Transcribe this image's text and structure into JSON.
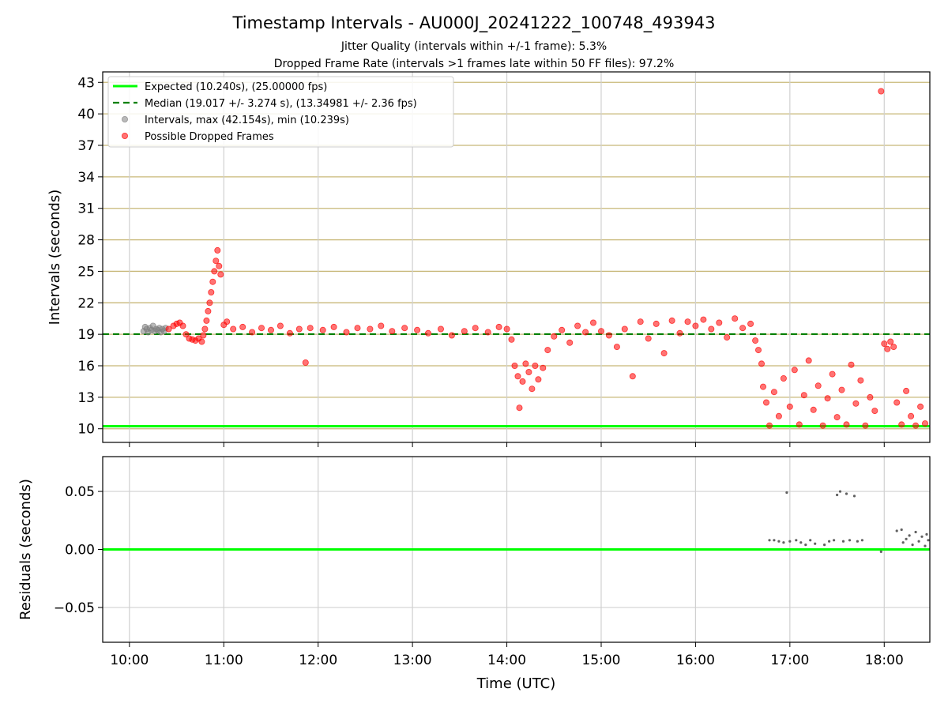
{
  "chart_data": [
    {
      "type": "scatter",
      "title": "Timestamp Intervals - AU000J_20241222_100748_493943",
      "subtitle_lines": [
        "Jitter Quality (intervals within +/-1 frame): 5.3%",
        "Dropped Frame Rate (intervals >1 frames late within 50 FF files): 97.2%"
      ],
      "xlabel": "",
      "ylabel": "Intervals (seconds)",
      "xlim": [
        "09:43",
        "18:29"
      ],
      "ylim": [
        8.7,
        44.0
      ],
      "x_ticks": [
        "10:00",
        "11:00",
        "12:00",
        "13:00",
        "14:00",
        "15:00",
        "16:00",
        "17:00",
        "18:00"
      ],
      "y_ticks": [
        10,
        13,
        16,
        19,
        22,
        25,
        28,
        31,
        34,
        37,
        40,
        43
      ],
      "grid": "on",
      "legend_position": "top-left",
      "legend": [
        {
          "label": "Expected (10.240s), (25.00000 fps)",
          "kind": "line",
          "color": "#00ff00",
          "style": "solid"
        },
        {
          "label": "Median (19.017 +/- 3.274 s), (13.34981 +/- 2.36 fps)",
          "kind": "line",
          "color": "#008000",
          "style": "dashed"
        },
        {
          "label": "Intervals, max (42.154s), min (10.239s)",
          "kind": "marker",
          "color": "#808080"
        },
        {
          "label": "Possible Dropped Frames",
          "kind": "marker",
          "color": "#ff0000"
        }
      ],
      "reference_lines": {
        "expected": 10.24,
        "median": 19.017
      },
      "series": [
        {
          "name": "Intervals, max (42.154s), min (10.239s)",
          "color": "#808080",
          "points": [
            [
              "10:09",
              19.3
            ],
            [
              "10:10",
              19.7
            ],
            [
              "10:11",
              19.5
            ],
            [
              "10:12",
              19.2
            ],
            [
              "10:13",
              19.6
            ],
            [
              "10:14",
              19.4
            ],
            [
              "10:15",
              19.8
            ],
            [
              "10:16",
              19.3
            ],
            [
              "10:17",
              19.5
            ],
            [
              "10:18",
              19.4
            ],
            [
              "10:19",
              19.6
            ],
            [
              "10:20",
              19.2
            ],
            [
              "10:21",
              19.5
            ],
            [
              "10:22",
              19.3
            ],
            [
              "10:23",
              19.6
            ]
          ]
        },
        {
          "name": "Possible Dropped Frames",
          "color": "#ff0000",
          "points": [
            [
              "10:25",
              19.5
            ],
            [
              "10:28",
              19.8
            ],
            [
              "10:30",
              20.0
            ],
            [
              "10:32",
              20.1
            ],
            [
              "10:34",
              19.8
            ],
            [
              "10:36",
              19.0
            ],
            [
              "10:38",
              18.6
            ],
            [
              "10:40",
              18.5
            ],
            [
              "10:42",
              18.4
            ],
            [
              "10:44",
              18.6
            ],
            [
              "10:46",
              18.3
            ],
            [
              "10:47",
              18.9
            ],
            [
              "10:48",
              19.5
            ],
            [
              "10:49",
              20.3
            ],
            [
              "10:50",
              21.2
            ],
            [
              "10:51",
              22.0
            ],
            [
              "10:52",
              23.0
            ],
            [
              "10:53",
              24.0
            ],
            [
              "10:54",
              25.0
            ],
            [
              "10:55",
              26.0
            ],
            [
              "10:56",
              27.0
            ],
            [
              "10:57",
              25.5
            ],
            [
              "10:58",
              24.7
            ],
            [
              "11:00",
              19.9
            ],
            [
              "11:02",
              20.2
            ],
            [
              "11:06",
              19.5
            ],
            [
              "11:12",
              19.7
            ],
            [
              "11:18",
              19.2
            ],
            [
              "11:24",
              19.6
            ],
            [
              "11:30",
              19.4
            ],
            [
              "11:36",
              19.8
            ],
            [
              "11:42",
              19.1
            ],
            [
              "11:48",
              19.5
            ],
            [
              "11:52",
              16.3
            ],
            [
              "11:55",
              19.6
            ],
            [
              "12:03",
              19.4
            ],
            [
              "12:10",
              19.7
            ],
            [
              "12:18",
              19.2
            ],
            [
              "12:25",
              19.6
            ],
            [
              "12:33",
              19.5
            ],
            [
              "12:40",
              19.8
            ],
            [
              "12:47",
              19.3
            ],
            [
              "12:55",
              19.6
            ],
            [
              "13:03",
              19.4
            ],
            [
              "13:10",
              19.1
            ],
            [
              "13:18",
              19.5
            ],
            [
              "13:25",
              18.9
            ],
            [
              "13:33",
              19.3
            ],
            [
              "13:40",
              19.6
            ],
            [
              "13:48",
              19.2
            ],
            [
              "13:55",
              19.7
            ],
            [
              "14:00",
              19.5
            ],
            [
              "14:03",
              18.5
            ],
            [
              "14:05",
              16.0
            ],
            [
              "14:07",
              15.0
            ],
            [
              "14:08",
              12.0
            ],
            [
              "14:10",
              14.5
            ],
            [
              "14:12",
              16.2
            ],
            [
              "14:14",
              15.4
            ],
            [
              "14:16",
              13.8
            ],
            [
              "14:18",
              16.0
            ],
            [
              "14:20",
              14.7
            ],
            [
              "14:23",
              15.8
            ],
            [
              "14:26",
              17.5
            ],
            [
              "14:30",
              18.8
            ],
            [
              "14:35",
              19.4
            ],
            [
              "14:40",
              18.2
            ],
            [
              "14:45",
              19.8
            ],
            [
              "14:50",
              19.2
            ],
            [
              "14:55",
              20.1
            ],
            [
              "15:00",
              19.3
            ],
            [
              "15:05",
              18.9
            ],
            [
              "15:10",
              17.8
            ],
            [
              "15:15",
              19.5
            ],
            [
              "15:20",
              15.0
            ],
            [
              "15:25",
              20.2
            ],
            [
              "15:30",
              18.6
            ],
            [
              "15:35",
              20.0
            ],
            [
              "15:40",
              17.2
            ],
            [
              "15:45",
              20.3
            ],
            [
              "15:50",
              19.1
            ],
            [
              "15:55",
              20.2
            ],
            [
              "16:00",
              19.8
            ],
            [
              "16:05",
              20.4
            ],
            [
              "16:10",
              19.5
            ],
            [
              "16:15",
              20.1
            ],
            [
              "16:20",
              18.7
            ],
            [
              "16:25",
              20.5
            ],
            [
              "16:30",
              19.6
            ],
            [
              "16:35",
              20.0
            ],
            [
              "16:38",
              18.4
            ],
            [
              "16:40",
              17.5
            ],
            [
              "16:42",
              16.2
            ],
            [
              "16:43",
              14.0
            ],
            [
              "16:45",
              12.5
            ],
            [
              "16:47",
              10.3
            ],
            [
              "16:50",
              13.5
            ],
            [
              "16:53",
              11.2
            ],
            [
              "16:56",
              14.8
            ],
            [
              "17:00",
              12.1
            ],
            [
              "17:03",
              15.6
            ],
            [
              "17:06",
              10.4
            ],
            [
              "17:09",
              13.2
            ],
            [
              "17:12",
              16.5
            ],
            [
              "17:15",
              11.8
            ],
            [
              "17:18",
              14.1
            ],
            [
              "17:21",
              10.3
            ],
            [
              "17:24",
              12.9
            ],
            [
              "17:27",
              15.2
            ],
            [
              "17:30",
              11.1
            ],
            [
              "17:33",
              13.7
            ],
            [
              "17:36",
              10.4
            ],
            [
              "17:39",
              16.1
            ],
            [
              "17:42",
              12.4
            ],
            [
              "17:45",
              14.6
            ],
            [
              "17:48",
              10.3
            ],
            [
              "17:51",
              13.0
            ],
            [
              "17:54",
              11.7
            ],
            [
              "17:58",
              42.154
            ],
            [
              "18:00",
              18.1
            ],
            [
              "18:02",
              17.6
            ],
            [
              "18:04",
              18.3
            ],
            [
              "18:06",
              17.8
            ],
            [
              "18:08",
              12.5
            ],
            [
              "18:11",
              10.4
            ],
            [
              "18:14",
              13.6
            ],
            [
              "18:17",
              11.2
            ],
            [
              "18:20",
              10.3
            ],
            [
              "18:23",
              12.1
            ],
            [
              "18:26",
              10.5
            ]
          ]
        }
      ]
    },
    {
      "type": "scatter",
      "xlabel": "Time (UTC)",
      "ylabel": "Residuals (seconds)",
      "xlim": [
        "09:43",
        "18:29"
      ],
      "ylim": [
        -0.08,
        0.08
      ],
      "x_ticks": [
        "10:00",
        "11:00",
        "12:00",
        "13:00",
        "14:00",
        "15:00",
        "16:00",
        "17:00",
        "18:00"
      ],
      "y_ticks": [
        0.05,
        0.0,
        -0.05
      ],
      "y_tick_labels": [
        "0.05",
        "0.00",
        "−0.05"
      ],
      "grid": "on",
      "reference_lines": {
        "zero": 0
      },
      "series": [
        {
          "color": "#606060",
          "points": [
            [
              "16:47",
              0.008
            ],
            [
              "16:50",
              0.008
            ],
            [
              "16:53",
              0.007
            ],
            [
              "16:56",
              0.006
            ],
            [
              "16:58",
              0.049
            ],
            [
              "17:00",
              0.007
            ],
            [
              "17:04",
              0.008
            ],
            [
              "17:07",
              0.006
            ],
            [
              "17:10",
              0.004
            ],
            [
              "17:13",
              0.008
            ],
            [
              "17:16",
              0.005
            ],
            [
              "17:22",
              0.004
            ],
            [
              "17:25",
              0.007
            ],
            [
              "17:28",
              0.008
            ],
            [
              "17:30",
              0.047
            ],
            [
              "17:32",
              0.05
            ],
            [
              "17:34",
              0.007
            ],
            [
              "17:36",
              0.048
            ],
            [
              "17:38",
              0.008
            ],
            [
              "17:41",
              0.046
            ],
            [
              "17:43",
              0.007
            ],
            [
              "17:46",
              0.008
            ],
            [
              "17:58",
              -0.002
            ],
            [
              "18:08",
              0.016
            ],
            [
              "18:11",
              0.017
            ],
            [
              "18:12",
              0.006
            ],
            [
              "18:14",
              0.009
            ],
            [
              "18:16",
              0.012
            ],
            [
              "18:18",
              0.004
            ],
            [
              "18:20",
              0.015
            ],
            [
              "18:22",
              0.007
            ],
            [
              "18:24",
              0.011
            ],
            [
              "18:26",
              0.003
            ],
            [
              "18:27",
              0.013
            ],
            [
              "18:28",
              0.008
            ]
          ]
        }
      ]
    }
  ]
}
